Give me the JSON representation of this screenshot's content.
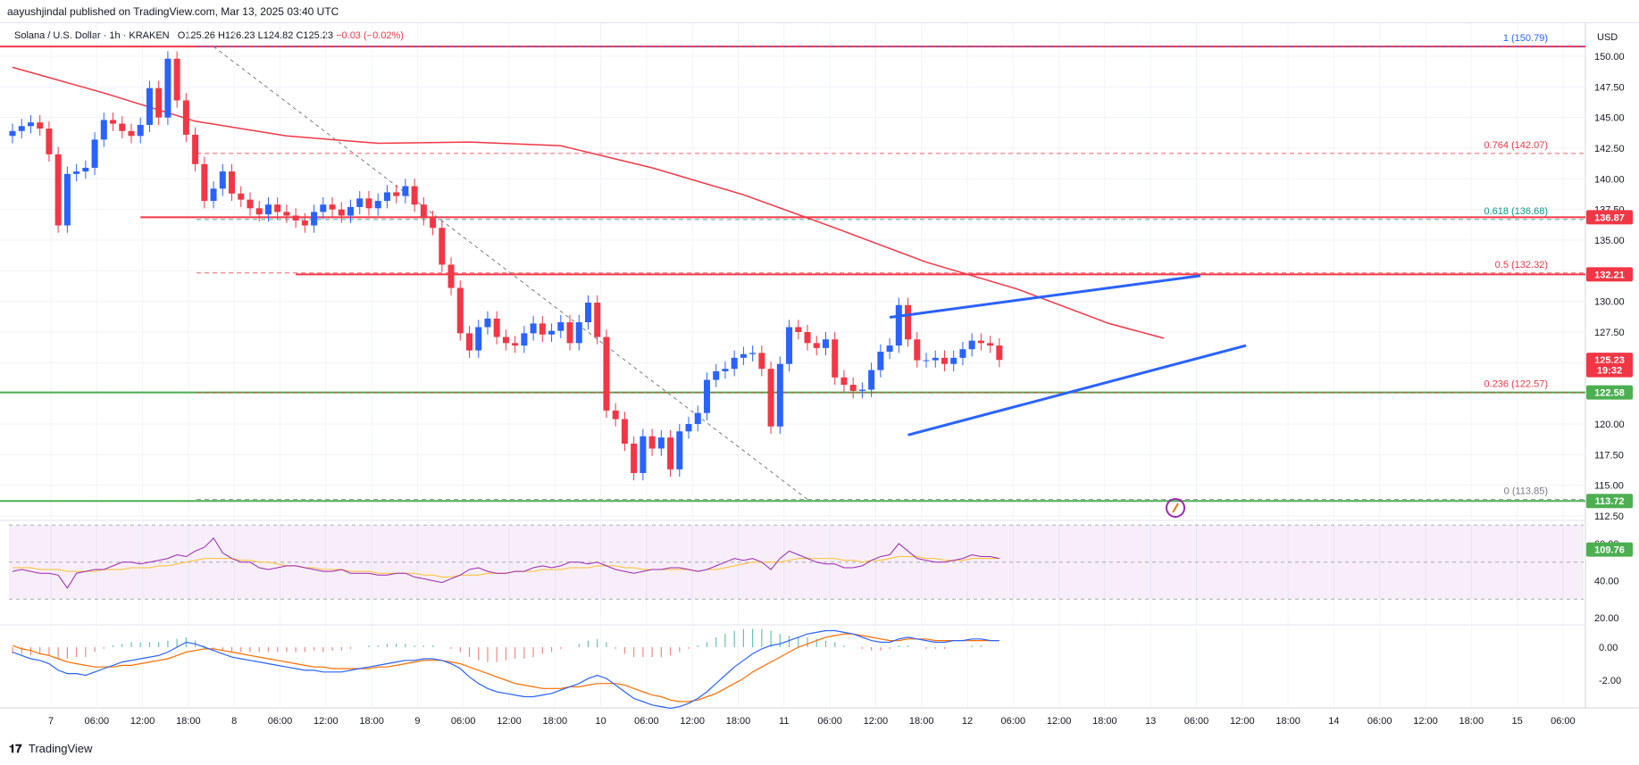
{
  "header": {
    "published": "aayushjindal published on TradingView.com, Mar 13, 2025 03:40 UTC"
  },
  "legend": {
    "title": "Solana / U.S. Dollar · 1h · KRAKEN",
    "open": "O125.26",
    "high": "H126.23",
    "low": "L124.82",
    "close": "C125.23",
    "change": "−0.03 (−0.02%)"
  },
  "currency": "USD",
  "footer": {
    "brand": "TradingView"
  },
  "colors": {
    "up": "#2962ff",
    "down": "#f23645",
    "ma": "#f23645",
    "resistance": "#f23645",
    "support": "#4caf50",
    "channel": "#2962ff",
    "rsi": "#9c27b0",
    "rsi_ma": "#fbc02d",
    "macd": "#2962ff",
    "signal": "#ff6d00",
    "fib_0618": "#089981",
    "fib_1": "#2962ff"
  },
  "chart_data": [
    {
      "type": "candlestick",
      "title": "Solana / U.S. Dollar · 1h · KRAKEN",
      "ylim": [
        110,
        152
      ],
      "y_ticks": [
        "112.50",
        "115.00",
        "117.50",
        "120.00",
        "122.50",
        "125.00",
        "127.50",
        "130.00",
        "132.50",
        "135.00",
        "137.50",
        "140.00",
        "142.50",
        "145.00",
        "147.50",
        "150.00"
      ],
      "x_tick_labels": [
        "7",
        "06:00",
        "12:00",
        "18:00",
        "8",
        "06:00",
        "12:00",
        "18:00",
        "9",
        "06:00",
        "12:00",
        "18:00",
        "10",
        "06:00",
        "12:00",
        "18:00",
        "11",
        "06:00",
        "12:00",
        "18:00",
        "12",
        "06:00",
        "12:00",
        "18:00",
        "13",
        "06:00",
        "12:00",
        "18:00",
        "14",
        "06:00",
        "12:00",
        "18:00",
        "15",
        "06:00"
      ],
      "close_series": [
        143.9,
        144.3,
        144.6,
        144.1,
        142.0,
        136.2,
        140.4,
        140.6,
        140.9,
        143.2,
        144.8,
        144.5,
        143.9,
        143.5,
        144.4,
        147.4,
        145.0,
        149.8,
        146.4,
        143.6,
        141.2,
        138.2,
        139.2,
        140.6,
        138.8,
        138.3,
        137.6,
        137.1,
        137.9,
        137.3,
        137.0,
        136.6,
        136.2,
        137.3,
        137.9,
        137.5,
        137.0,
        137.7,
        138.4,
        137.6,
        138.2,
        138.9,
        138.6,
        139.4,
        137.9,
        136.8,
        136.0,
        133.0,
        131.1,
        127.4,
        126.0,
        127.9,
        128.6,
        127.1,
        126.6,
        126.4,
        127.4,
        128.2,
        127.3,
        127.6,
        128.3,
        126.6,
        128.3,
        129.9,
        127.1,
        121.1,
        120.4,
        118.4,
        116.0,
        119.0,
        118.0,
        118.9,
        116.3,
        119.4,
        120.0,
        120.9,
        123.6,
        124.3,
        124.5,
        125.4,
        125.7,
        125.8,
        124.5,
        119.8,
        124.9,
        127.9,
        127.5,
        126.6,
        126.2,
        126.9,
        123.8,
        123.2,
        122.7,
        122.8,
        124.4,
        125.9,
        126.4,
        129.7,
        126.9,
        125.2,
        125.2,
        125.4,
        124.9,
        125.4,
        126.1,
        126.8,
        126.6,
        126.4,
        125.23
      ],
      "moving_average": [
        {
          "x": 0,
          "y": 149.1
        },
        {
          "x": 10,
          "y": 147.0
        },
        {
          "x": 20,
          "y": 144.7
        },
        {
          "x": 30,
          "y": 143.5
        },
        {
          "x": 40,
          "y": 142.9
        },
        {
          "x": 50,
          "y": 143.0
        },
        {
          "x": 60,
          "y": 142.7
        },
        {
          "x": 70,
          "y": 140.9
        },
        {
          "x": 80,
          "y": 138.7
        },
        {
          "x": 90,
          "y": 136.0
        },
        {
          "x": 100,
          "y": 133.2
        },
        {
          "x": 110,
          "y": 131.0
        },
        {
          "x": 120,
          "y": 128.2
        },
        {
          "x": 126,
          "y": 127.0
        }
      ],
      "fibonacci": [
        {
          "label": "1 (150.79)",
          "value": 150.79
        },
        {
          "label": "0.764 (142.07)",
          "value": 142.07
        },
        {
          "label": "0.618 (136.68)",
          "value": 136.68
        },
        {
          "label": "0.5 (132.32)",
          "value": 132.32
        },
        {
          "label": "0.236 (122.57)",
          "value": 122.57
        },
        {
          "label": "0 (113.85)",
          "value": 113.85
        }
      ],
      "price_levels": [
        {
          "label": "136.87",
          "value": 136.87,
          "kind": "resistance"
        },
        {
          "label": "132.21",
          "value": 132.21,
          "kind": "resistance"
        },
        {
          "label": "125.23",
          "value": 125.23,
          "kind": "last"
        },
        {
          "label": "19:32",
          "value": 124.4,
          "kind": "countdown"
        },
        {
          "label": "122.58",
          "value": 122.58,
          "kind": "support"
        },
        {
          "label": "113.72",
          "value": 113.72,
          "kind": "support"
        },
        {
          "label": "109.76",
          "value": 109.76,
          "kind": "marker"
        }
      ],
      "trendlines": {
        "channel_upper": [
          {
            "x": 96,
            "y": 128.7
          },
          {
            "x": 130,
            "y": 132.1
          }
        ],
        "channel_lower": [
          {
            "x": 98,
            "y": 119.1
          },
          {
            "x": 135,
            "y": 126.4
          }
        ],
        "resistance_a": {
          "x_from": 14,
          "y": 136.87
        },
        "resistance_b": {
          "x_from": 31,
          "y": 132.21
        },
        "support_a": 122.58,
        "support_b": 113.72,
        "top_line": 150.79,
        "decline": [
          {
            "x": 22,
            "y": 150.79
          },
          {
            "x": 87,
            "y": 113.85
          }
        ]
      }
    },
    {
      "type": "line",
      "name": "RSI",
      "ylim": [
        10,
        71
      ],
      "y_ticks": [
        "20.00",
        "40.00",
        "60.00"
      ],
      "band": [
        30,
        70
      ],
      "mid": 50,
      "values": [
        45,
        46,
        45,
        44,
        44,
        43,
        36,
        44,
        45,
        46,
        46,
        48,
        50,
        50,
        49,
        50,
        51,
        52,
        54,
        53,
        56,
        58,
        63,
        55,
        52,
        50,
        50,
        47,
        46,
        47,
        48,
        48,
        47,
        46,
        45,
        45,
        46,
        44,
        44,
        44,
        43,
        43,
        44,
        44,
        42,
        41,
        40,
        39,
        41,
        43,
        46,
        47,
        45,
        44,
        44,
        45,
        45,
        47,
        48,
        47,
        48,
        50,
        50,
        49,
        50,
        48,
        46,
        45,
        44,
        45,
        46,
        46,
        47,
        47,
        46,
        45,
        46,
        48,
        50,
        52,
        51,
        52,
        50,
        46,
        52,
        56,
        54,
        52,
        50,
        49,
        49,
        47,
        47,
        48,
        51,
        53,
        54,
        60,
        56,
        52,
        51,
        50,
        50,
        51,
        52,
        54,
        53,
        53,
        52
      ],
      "ma_values": [
        47,
        47,
        47,
        46,
        46,
        46,
        45,
        45,
        45,
        45,
        46,
        46,
        46,
        47,
        47,
        47,
        48,
        48,
        49,
        50,
        51,
        52,
        52,
        52,
        52,
        51,
        51,
        50,
        50,
        49,
        48,
        48,
        47,
        47,
        46,
        46,
        46,
        45,
        45,
        45,
        44,
        44,
        44,
        44,
        44,
        43,
        43,
        42,
        42,
        43,
        43,
        43,
        44,
        44,
        44,
        45,
        45,
        45,
        46,
        46,
        46,
        47,
        47,
        47,
        48,
        48,
        48,
        47,
        47,
        46,
        46,
        46,
        46,
        46,
        46,
        45,
        46,
        46,
        47,
        48,
        49,
        50,
        50,
        50,
        50,
        51,
        52,
        52,
        52,
        52,
        52,
        51,
        51,
        50,
        51,
        51,
        52,
        53,
        53,
        53,
        52,
        52,
        51,
        51,
        51,
        52,
        52,
        52,
        52
      ]
    },
    {
      "type": "line",
      "name": "MACD",
      "ylim": [
        -4,
        2.2
      ],
      "y_ticks": [
        "-2.00",
        "0.00"
      ],
      "macd_values": [
        -0.3,
        -0.5,
        -0.7,
        -0.8,
        -1.0,
        -1.4,
        -1.6,
        -1.6,
        -1.7,
        -1.5,
        -1.3,
        -1.1,
        -0.9,
        -0.8,
        -0.7,
        -0.6,
        -0.5,
        -0.3,
        0.0,
        0.3,
        0.2,
        0.0,
        -0.2,
        -0.4,
        -0.6,
        -0.7,
        -0.8,
        -0.9,
        -1.0,
        -1.1,
        -1.2,
        -1.3,
        -1.4,
        -1.4,
        -1.5,
        -1.5,
        -1.5,
        -1.4,
        -1.3,
        -1.2,
        -1.1,
        -1.0,
        -0.9,
        -0.8,
        -0.8,
        -0.7,
        -0.7,
        -0.8,
        -1.0,
        -1.3,
        -1.8,
        -2.2,
        -2.5,
        -2.7,
        -2.8,
        -2.9,
        -3.0,
        -3.0,
        -2.9,
        -2.8,
        -2.6,
        -2.4,
        -2.2,
        -1.9,
        -1.7,
        -1.9,
        -2.3,
        -2.7,
        -3.1,
        -3.3,
        -3.5,
        -3.6,
        -3.7,
        -3.6,
        -3.4,
        -3.1,
        -2.7,
        -2.2,
        -1.7,
        -1.2,
        -0.8,
        -0.4,
        -0.1,
        0.1,
        0.2,
        0.4,
        0.6,
        0.8,
        0.9,
        1.0,
        1.0,
        0.9,
        0.8,
        0.6,
        0.4,
        0.3,
        0.3,
        0.5,
        0.6,
        0.5,
        0.4,
        0.3,
        0.3,
        0.4,
        0.4,
        0.5,
        0.5,
        0.4,
        0.4
      ],
      "signal_values": [
        0.1,
        -0.1,
        -0.2,
        -0.4,
        -0.5,
        -0.7,
        -0.9,
        -1.0,
        -1.1,
        -1.2,
        -1.2,
        -1.2,
        -1.1,
        -1.1,
        -1.0,
        -0.9,
        -0.8,
        -0.7,
        -0.5,
        -0.3,
        -0.2,
        -0.1,
        -0.1,
        -0.2,
        -0.3,
        -0.4,
        -0.5,
        -0.6,
        -0.7,
        -0.8,
        -0.9,
        -1.0,
        -1.1,
        -1.2,
        -1.2,
        -1.3,
        -1.3,
        -1.3,
        -1.3,
        -1.3,
        -1.2,
        -1.2,
        -1.1,
        -1.0,
        -0.9,
        -0.8,
        -0.8,
        -0.8,
        -0.9,
        -1.0,
        -1.2,
        -1.4,
        -1.6,
        -1.8,
        -2.0,
        -2.2,
        -2.3,
        -2.4,
        -2.5,
        -2.5,
        -2.5,
        -2.4,
        -2.4,
        -2.3,
        -2.2,
        -2.2,
        -2.2,
        -2.3,
        -2.5,
        -2.7,
        -2.9,
        -3.0,
        -3.2,
        -3.3,
        -3.3,
        -3.2,
        -3.0,
        -2.8,
        -2.5,
        -2.2,
        -1.9,
        -1.5,
        -1.2,
        -0.9,
        -0.6,
        -0.3,
        0.0,
        0.2,
        0.4,
        0.6,
        0.7,
        0.8,
        0.8,
        0.7,
        0.6,
        0.5,
        0.4,
        0.4,
        0.5,
        0.5,
        0.5,
        0.4,
        0.4,
        0.4,
        0.4,
        0.4,
        0.4,
        0.4,
        0.4
      ]
    }
  ]
}
